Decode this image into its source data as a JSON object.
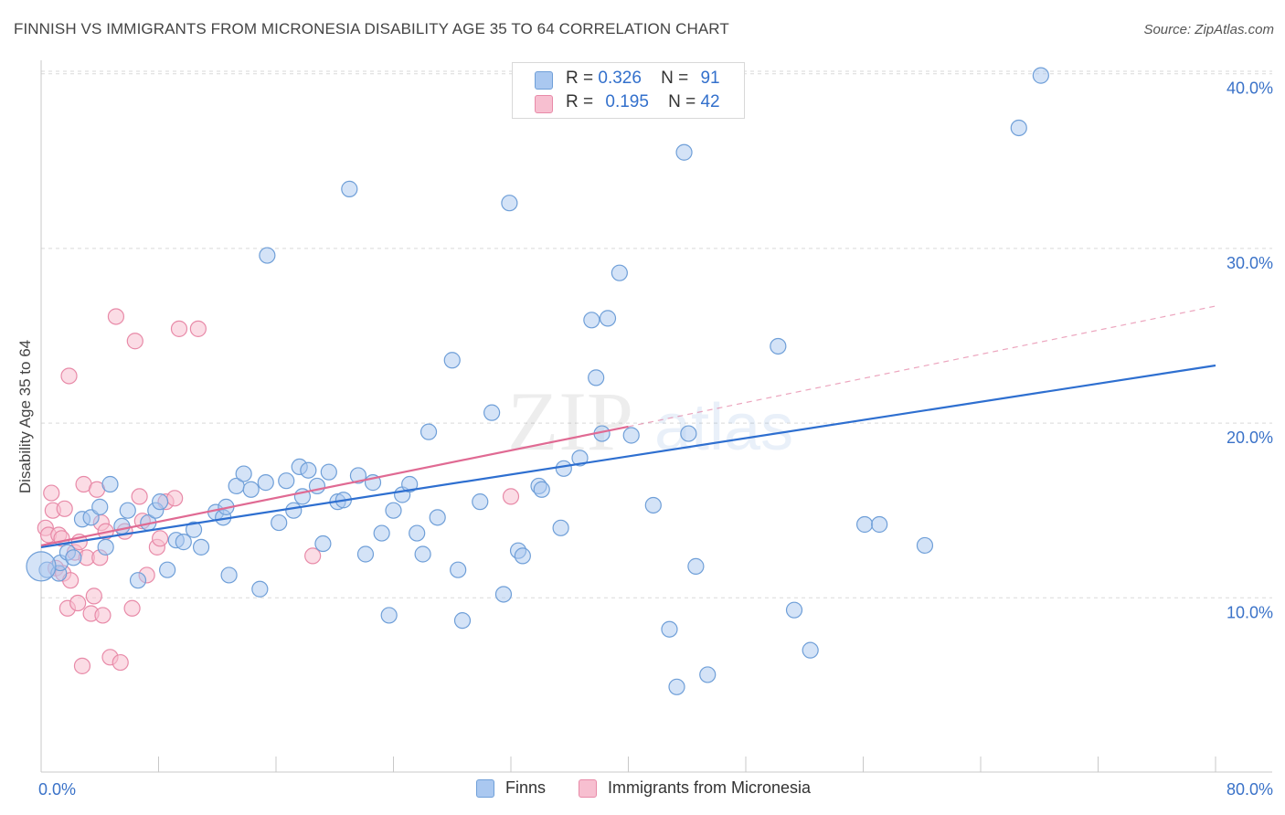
{
  "header": {
    "title": "FINNISH VS IMMIGRANTS FROM MICRONESIA DISABILITY AGE 35 TO 64 CORRELATION CHART",
    "source": "Source: ZipAtlas.com"
  },
  "watermark": {
    "zip": "ZIP",
    "atlas": "atlas"
  },
  "legend_top": {
    "finns": {
      "r_label": "R =",
      "r_value": "0.326",
      "n_label": "N =",
      "n_value": "91"
    },
    "micronesia": {
      "r_label": "R =",
      "r_value": "0.195",
      "n_label": "N =",
      "n_value": "42"
    }
  },
  "legend_bottom": {
    "finns": "Finns",
    "micronesia": "Immigrants from Micronesia"
  },
  "colors": {
    "finns_fill": "#aac8f0",
    "finns_stroke": "#6f9fd8",
    "finns_line": "#2e6fd0",
    "micro_fill": "#f7bfd0",
    "micro_stroke": "#e88aa8",
    "micro_line": "#e06a93",
    "axis_label": "#3a72c8",
    "grid": "#d9d9d9"
  },
  "chart_data": {
    "type": "scatter",
    "title": "FINNISH VS IMMIGRANTS FROM MICRONESIA DISABILITY AGE 35 TO 64 CORRELATION CHART",
    "xlabel": "",
    "ylabel": "Disability Age 35 to 64",
    "xlim": [
      0,
      80
    ],
    "ylim": [
      0,
      42
    ],
    "x_tick_labels": [
      "0.0%",
      "80.0%"
    ],
    "y_ticks": [
      10,
      20,
      30,
      40
    ],
    "y_tick_labels": [
      "10.0%",
      "20.0%",
      "30.0%",
      "40.0%"
    ],
    "grid": true,
    "series": [
      {
        "name": "Finns",
        "r": 0.326,
        "n": 91,
        "trend": {
          "x": [
            0,
            80
          ],
          "y": [
            12.9,
            23.3
          ]
        },
        "points": [
          [
            0.4,
            11.6
          ],
          [
            1.2,
            11.4
          ],
          [
            1.3,
            12.0
          ],
          [
            1.8,
            12.6
          ],
          [
            2.2,
            12.3
          ],
          [
            2.8,
            14.5
          ],
          [
            3.4,
            14.6
          ],
          [
            4.0,
            15.2
          ],
          [
            4.4,
            12.9
          ],
          [
            4.7,
            16.5
          ],
          [
            5.5,
            14.1
          ],
          [
            5.9,
            15.0
          ],
          [
            6.6,
            11.0
          ],
          [
            7.3,
            14.3
          ],
          [
            7.8,
            15.0
          ],
          [
            8.1,
            15.5
          ],
          [
            8.6,
            11.6
          ],
          [
            9.2,
            13.3
          ],
          [
            9.7,
            13.2
          ],
          [
            10.4,
            13.9
          ],
          [
            10.9,
            12.9
          ],
          [
            11.9,
            14.9
          ],
          [
            12.4,
            14.6
          ],
          [
            12.6,
            15.2
          ],
          [
            12.8,
            11.3
          ],
          [
            13.3,
            16.4
          ],
          [
            13.8,
            17.1
          ],
          [
            14.3,
            16.2
          ],
          [
            14.9,
            10.5
          ],
          [
            15.3,
            16.6
          ],
          [
            15.4,
            29.6
          ],
          [
            16.2,
            14.3
          ],
          [
            16.7,
            16.7
          ],
          [
            17.2,
            15.0
          ],
          [
            17.6,
            17.5
          ],
          [
            17.8,
            15.8
          ],
          [
            18.2,
            17.3
          ],
          [
            18.8,
            16.4
          ],
          [
            19.2,
            13.1
          ],
          [
            19.6,
            17.2
          ],
          [
            20.2,
            15.5
          ],
          [
            20.6,
            15.6
          ],
          [
            21.0,
            33.4
          ],
          [
            21.6,
            17.0
          ],
          [
            22.1,
            12.5
          ],
          [
            22.6,
            16.6
          ],
          [
            23.2,
            13.7
          ],
          [
            23.7,
            9.0
          ],
          [
            24.0,
            15.0
          ],
          [
            24.6,
            15.9
          ],
          [
            25.1,
            16.5
          ],
          [
            25.6,
            13.7
          ],
          [
            26.0,
            12.5
          ],
          [
            26.4,
            19.5
          ],
          [
            27.0,
            14.6
          ],
          [
            28.0,
            23.6
          ],
          [
            28.4,
            11.6
          ],
          [
            28.7,
            8.7
          ],
          [
            29.9,
            15.5
          ],
          [
            30.7,
            20.6
          ],
          [
            31.5,
            10.2
          ],
          [
            31.9,
            32.6
          ],
          [
            32.5,
            12.7
          ],
          [
            32.8,
            12.4
          ],
          [
            33.9,
            16.4
          ],
          [
            34.1,
            16.2
          ],
          [
            35.4,
            14.0
          ],
          [
            35.6,
            17.4
          ],
          [
            36.7,
            18.0
          ],
          [
            37.5,
            25.9
          ],
          [
            37.8,
            22.6
          ],
          [
            38.2,
            19.4
          ],
          [
            38.6,
            26.0
          ],
          [
            39.4,
            28.6
          ],
          [
            40.2,
            19.3
          ],
          [
            41.7,
            15.3
          ],
          [
            42.8,
            8.2
          ],
          [
            43.3,
            4.9
          ],
          [
            43.8,
            35.5
          ],
          [
            44.1,
            19.4
          ],
          [
            44.6,
            11.8
          ],
          [
            45.4,
            5.6
          ],
          [
            50.2,
            24.4
          ],
          [
            51.3,
            9.3
          ],
          [
            52.4,
            7.0
          ],
          [
            56.1,
            14.2
          ],
          [
            57.1,
            14.2
          ],
          [
            60.2,
            13.0
          ],
          [
            66.6,
            36.9
          ],
          [
            68.1,
            39.9
          ],
          [
            0.0,
            11.8
          ]
        ]
      },
      {
        "name": "Immigrants from Micronesia",
        "r": 0.195,
        "n": 42,
        "trend": {
          "x": [
            0,
            40
          ],
          "y": [
            13.0,
            19.8
          ]
        },
        "trend_extension": {
          "x": [
            40,
            80
          ],
          "y": [
            19.8,
            26.7
          ]
        },
        "points": [
          [
            0.3,
            14.0
          ],
          [
            0.5,
            13.6
          ],
          [
            0.7,
            16.0
          ],
          [
            0.8,
            15.0
          ],
          [
            1.0,
            11.7
          ],
          [
            1.2,
            13.6
          ],
          [
            1.4,
            13.4
          ],
          [
            1.5,
            11.4
          ],
          [
            1.6,
            15.1
          ],
          [
            1.8,
            9.4
          ],
          [
            1.9,
            22.7
          ],
          [
            2.0,
            11.0
          ],
          [
            2.3,
            12.6
          ],
          [
            2.5,
            9.7
          ],
          [
            2.8,
            6.1
          ],
          [
            2.9,
            16.5
          ],
          [
            3.1,
            12.3
          ],
          [
            3.4,
            9.1
          ],
          [
            3.6,
            10.1
          ],
          [
            3.8,
            16.2
          ],
          [
            4.0,
            12.3
          ],
          [
            4.1,
            14.3
          ],
          [
            4.2,
            9.0
          ],
          [
            4.4,
            13.8
          ],
          [
            4.7,
            6.6
          ],
          [
            5.1,
            26.1
          ],
          [
            5.4,
            6.3
          ],
          [
            5.7,
            13.8
          ],
          [
            6.2,
            9.4
          ],
          [
            6.4,
            24.7
          ],
          [
            6.7,
            15.8
          ],
          [
            6.9,
            14.4
          ],
          [
            7.2,
            11.3
          ],
          [
            7.9,
            12.9
          ],
          [
            8.1,
            13.4
          ],
          [
            8.5,
            15.5
          ],
          [
            9.1,
            15.7
          ],
          [
            9.4,
            25.4
          ],
          [
            10.7,
            25.4
          ],
          [
            18.5,
            12.4
          ],
          [
            32.0,
            15.8
          ],
          [
            2.6,
            13.2
          ]
        ]
      }
    ]
  }
}
